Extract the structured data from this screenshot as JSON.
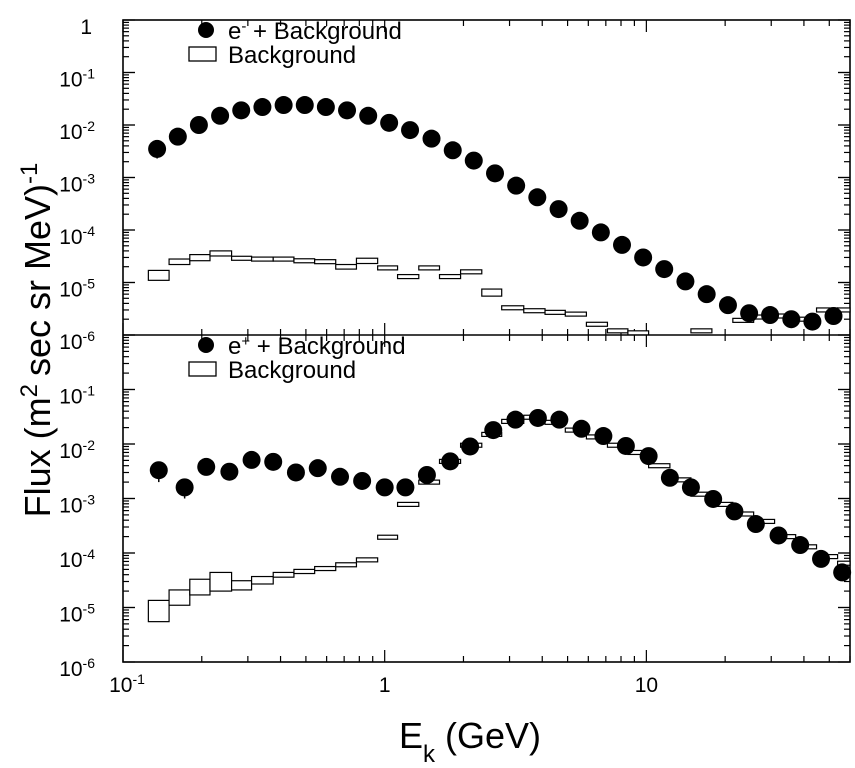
{
  "chart_data": {
    "type": "scatter",
    "x_axis": {
      "label_base": "E",
      "label_sub": "k",
      "label_rest": " (GeV)",
      "scale": "log",
      "range": [
        0.1,
        60
      ],
      "major_ticks": [
        {
          "value": 0.1,
          "base": "10",
          "exp": "-1"
        },
        {
          "value": 1,
          "base": "1",
          "exp": ""
        },
        {
          "value": 10,
          "base": "10",
          "exp": ""
        }
      ]
    },
    "y_axis": {
      "label_main": "Flux (m",
      "label_sup1": "2",
      "label_mid": "sec sr MeV)",
      "label_sup2": "-1",
      "scale": "log",
      "range": [
        1e-06,
        1
      ]
    },
    "panels": [
      {
        "legend": [
          {
            "marker": "filled-circle",
            "label_pre": "e",
            "label_sup": "-",
            "label_post": " + Background"
          },
          {
            "marker": "open-box",
            "label_pre": "Background",
            "label_sup": "",
            "label_post": ""
          }
        ],
        "y_ticks": [
          {
            "value": 1,
            "base": "1",
            "exp": ""
          },
          {
            "value": 0.1,
            "base": "10",
            "exp": "-1"
          },
          {
            "value": 0.01,
            "base": "10",
            "exp": "-2"
          },
          {
            "value": 0.001,
            "base": "10",
            "exp": "-3"
          },
          {
            "value": 0.0001,
            "base": "10",
            "exp": "-4"
          },
          {
            "value": 1e-05,
            "base": "10",
            "exp": "-5"
          },
          {
            "value": 1e-06,
            "base": "10",
            "exp": "-6"
          }
        ],
        "series": [
          {
            "marker": "filled-circle",
            "x": [
              0.135,
              0.162,
              0.195,
              0.235,
              0.283,
              0.341,
              0.411,
              0.495,
              0.596,
              0.718,
              0.865,
              1.04,
              1.25,
              1.51,
              1.82,
              2.19,
              2.64,
              3.18,
              3.83,
              4.62,
              5.56,
              6.7,
              8.07,
              9.72,
              11.7,
              14.1,
              17.0,
              20.5,
              24.7,
              29.7,
              35.8,
              43.1,
              51.9
            ],
            "y": [
              0.0035,
              0.006,
              0.01,
              0.015,
              0.019,
              0.022,
              0.024,
              0.024,
              0.022,
              0.019,
              0.015,
              0.011,
              0.008,
              0.0055,
              0.0033,
              0.0021,
              0.0012,
              0.0007,
              0.00042,
              0.00025,
              0.00015,
              9e-05,
              5.2e-05,
              3e-05,
              1.8e-05,
              1.05e-05,
              6e-06,
              3.7e-06,
              2.6e-06,
              2.4e-06,
              2e-06,
              1.8e-06,
              2.3e-06
            ],
            "y_err_low": [
              0.0012,
              null,
              null,
              null,
              null,
              null,
              null,
              null,
              null,
              null,
              null,
              null,
              null,
              null,
              null,
              null,
              null,
              null,
              null,
              null,
              null,
              null,
              null,
              null,
              null,
              null,
              null,
              null,
              null,
              null,
              null,
              null,
              null
            ]
          },
          {
            "marker": "open-box",
            "bin_edges": [
              0.125,
              0.15,
              0.18,
              0.215,
              0.26,
              0.31,
              0.375,
              0.45,
              0.54,
              0.65,
              0.78,
              0.94,
              1.12,
              1.35,
              1.62,
              1.95,
              2.35,
              2.8,
              3.4,
              4.1,
              4.9,
              5.9,
              7.1,
              8.5,
              10.2,
              12.3,
              14.8,
              17.8,
              21.4,
              25.7,
              30.9,
              37.2,
              44.7,
              53.8,
              60
            ],
            "y": [
              1.4e-05,
              2.5e-05,
              3e-05,
              3.6e-05,
              2.9e-05,
              2.8e-05,
              2.8e-05,
              2.6e-05,
              2.5e-05,
              2e-05,
              2.6e-05,
              1.9e-05,
              1.3e-05,
              1.9e-05,
              1.3e-05,
              1.6e-05,
              6.5e-06,
              3.3e-06,
              2.9e-06,
              2.7e-06,
              2.5e-06,
              1.6e-06,
              1.2e-06,
              1.1e-06,
              null,
              null,
              1.2e-06,
              null,
              1.9e-06,
              2.2e-06,
              2.3e-06,
              2e-06,
              3e-06,
              3e-06
            ],
            "y_err": [
              3e-06,
              3e-06,
              4e-06,
              4e-06,
              2e-06,
              2e-06,
              2e-06,
              2e-06,
              2e-06,
              2e-06,
              3e-06,
              1e-06,
              1e-06,
              1e-06,
              1e-06,
              1e-06,
              1e-06,
              0,
              0,
              0,
              0,
              0,
              0,
              0,
              0,
              0,
              0,
              0,
              0,
              0,
              0,
              0,
              0,
              0
            ]
          }
        ]
      },
      {
        "legend": [
          {
            "marker": "filled-circle",
            "label_pre": "e",
            "label_sup": "+",
            "label_post": " + Background"
          },
          {
            "marker": "open-box",
            "label_pre": "Background",
            "label_sup": "",
            "label_post": ""
          }
        ],
        "y_ticks": [
          {
            "value": 0.1,
            "base": "10",
            "exp": "-1"
          },
          {
            "value": 0.01,
            "base": "10",
            "exp": "-2"
          },
          {
            "value": 0.001,
            "base": "10",
            "exp": "-3"
          },
          {
            "value": 0.0001,
            "base": "10",
            "exp": "-4"
          },
          {
            "value": 1e-05,
            "base": "10",
            "exp": "-5"
          },
          {
            "value": 1e-06,
            "base": "10",
            "exp": "-6"
          }
        ],
        "series": [
          {
            "marker": "filled-circle",
            "x": [
              0.137,
              0.172,
              0.208,
              0.255,
              0.31,
              0.375,
              0.458,
              0.555,
              0.675,
              0.82,
              1.0,
              1.2,
              1.45,
              1.78,
              2.12,
              2.6,
              3.16,
              3.85,
              4.65,
              5.65,
              6.85,
              8.35,
              10.2,
              12.3,
              14.8,
              18.0,
              21.7,
              26.2,
              32.0,
              38.7,
              46.5,
              56.0
            ],
            "y": [
              0.0033,
              0.0016,
              0.0038,
              0.0031,
              0.0051,
              0.0047,
              0.003,
              0.0036,
              0.0025,
              0.0021,
              0.0016,
              0.0016,
              0.0027,
              0.0048,
              0.009,
              0.018,
              0.028,
              0.03,
              0.028,
              0.019,
              0.014,
              0.0092,
              0.006,
              0.0024,
              0.0016,
              0.00098,
              0.00058,
              0.00034,
              0.00021,
              0.00014,
              7.8e-05,
              4.4e-05
            ],
            "y_err_low": [
              0.0013,
              0.0006,
              null,
              null,
              null,
              null,
              null,
              null,
              null,
              null,
              null,
              null,
              null,
              null,
              null,
              null,
              null,
              null,
              null,
              null,
              null,
              null,
              null,
              null,
              null,
              null,
              null,
              null,
              null,
              null,
              null,
              null
            ]
          },
          {
            "marker": "open-box",
            "bin_edges": [
              0.125,
              0.15,
              0.18,
              0.215,
              0.26,
              0.31,
              0.375,
              0.45,
              0.54,
              0.65,
              0.78,
              0.94,
              1.12,
              1.35,
              1.62,
              1.95,
              2.35,
              2.8,
              3.4,
              4.1,
              4.9,
              5.9,
              7.1,
              8.5,
              10.2,
              12.3,
              14.8,
              17.8,
              21.4,
              25.7,
              30.9,
              37.2,
              44.7,
              53.8,
              60
            ],
            "y": [
              9.5e-06,
              1.6e-05,
              2.5e-05,
              3.2e-05,
              2.6e-05,
              3.2e-05,
              4e-05,
              4.6e-05,
              5.2e-05,
              6.1e-05,
              7.5e-05,
              0.000195,
              0.00078,
              0.002,
              0.0048,
              0.0095,
              0.015,
              0.026,
              0.031,
              0.025,
              0.018,
              0.0135,
              0.0095,
              0.007,
              0.004,
              0.0022,
              0.0012,
              0.00078,
              0.00052,
              0.00038,
              0.0002,
              0.00013,
              8.6e-05,
              6.5e-05
            ],
            "y_err": [
              4e-06,
              5e-06,
              8e-06,
              1.2e-05,
              5e-06,
              5e-06,
              4e-06,
              4e-06,
              4e-06,
              5e-06,
              5e-06,
              1e-05,
              3e-05,
              0.0001,
              0.0002,
              0.0004,
              0.0006,
              0.001,
              0.0012,
              0.001,
              0.0007,
              0.0005,
              0.0004,
              0.0003,
              0.0002,
              0.0001,
              5e-05,
              3e-05,
              2e-05,
              1.5e-05,
              1e-05,
              6e-06,
              4e-06,
              3e-06
            ]
          }
        ]
      }
    ]
  }
}
